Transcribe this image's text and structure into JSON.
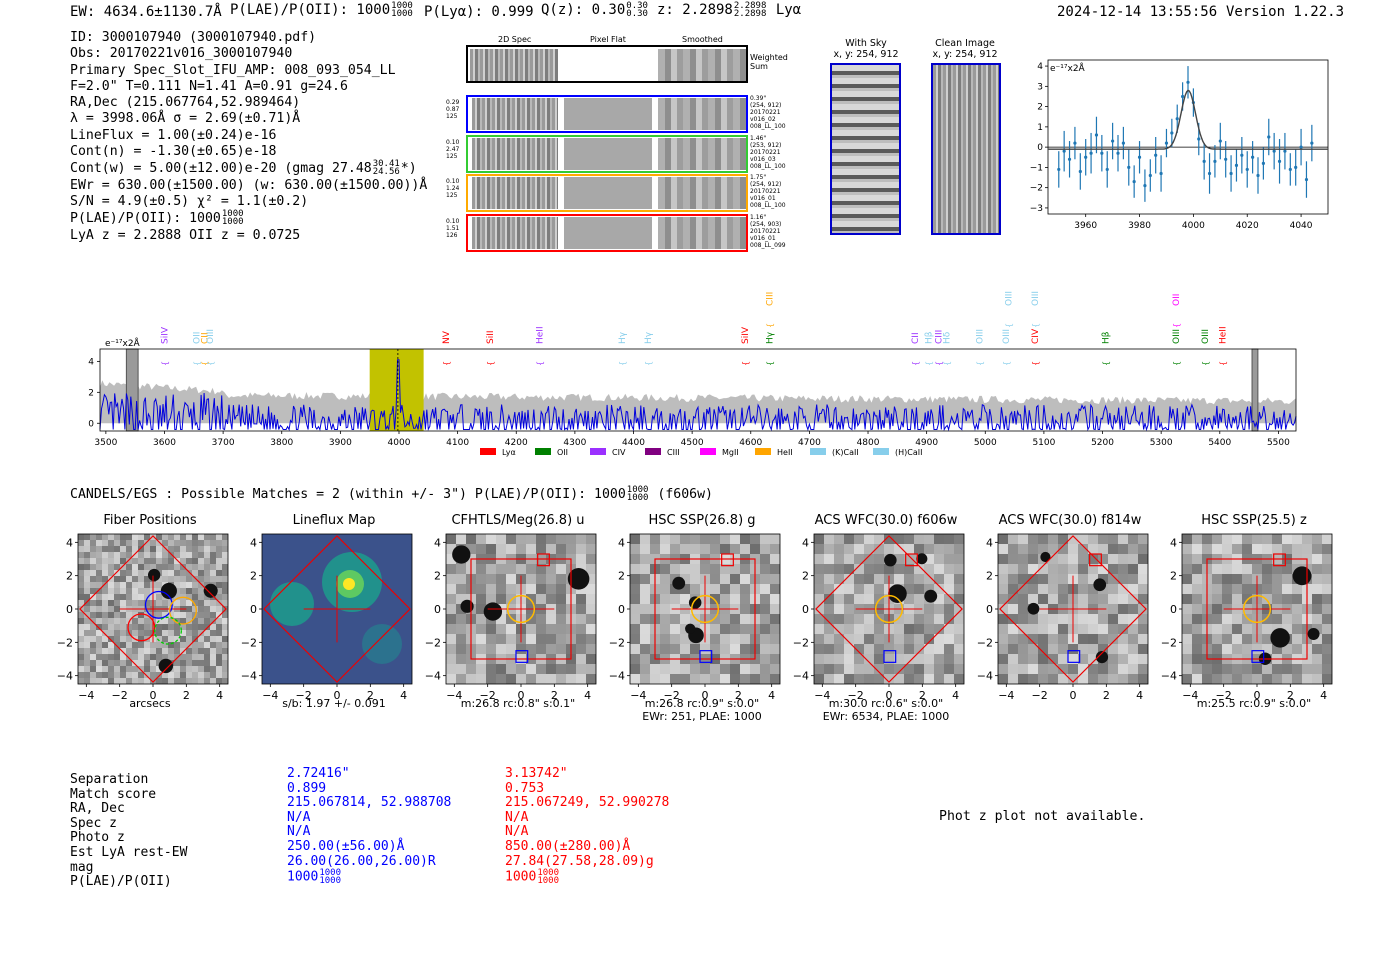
{
  "header": {
    "ew": "EW: 4634.6±1130.7Å",
    "plae_label": "P(LAE)/P(OII): 1000",
    "plae_hi": "1000",
    "plae_lo": "1000",
    "plya": "P(Lyα): 0.999",
    "qz_label": "Q(z): 0.30",
    "qz_hi": "0.30",
    "qz_lo": "0.30",
    "z_label": "z: 2.2898",
    "z_hi": "2.2898",
    "z_lo": "2.2898",
    "z_line": "Lyα",
    "timestamp": "2024-12-14 13:55:56",
    "version": "Version 1.22.3"
  },
  "info": {
    "id": "ID: 3000107940 (3000107940.pdf)",
    "obs": "Obs: 20170221v016_3000107940",
    "primary": "Primary Spec_Slot_IFU_AMP: 008_093_054_LL",
    "fwhm": "F=2.0\"  T=0.111  N=1.41  A=0.91  g=24.6",
    "radec": "RA,Dec (215.067764,52.989464)",
    "lambda": "λ = 3998.06Å  σ = 2.69(±0.71)Å",
    "lineflux": "LineFlux = 1.00(±0.24)e-16",
    "contn": "Cont(n) = -1.30(±0.65)e-18",
    "contw_pre": "Cont(w) = 5.00(±12.00)e-20 (gmag 27.48",
    "contw_hi": "30.41",
    "contw_lo": "24.56",
    "contw_post": "*)",
    "ewr": "EWr = 630.00(±1500.00) (w: 630.00(±1500.00))Å",
    "sn": "S/N = 4.9(±0.5)  χ² = 1.1(±0.2)",
    "plae_pre": "P(LAE)/P(OII): 1000",
    "plae_hi": "1000",
    "plae_lo": "1000",
    "lya_z": "LyA z = 2.2888  OII z = 0.0725"
  },
  "spec2d": {
    "col_headers": [
      "2D Spec",
      "Pixel Flat",
      "Smoothed"
    ],
    "weighted_sum": "Weighted Sum",
    "rows": [
      {
        "stats": [
          "0.29",
          "0.87",
          "125"
        ],
        "right": [
          "0.39\"",
          "(254, 912)",
          "20170221",
          "v016_02",
          "008_LL_100"
        ],
        "color": "#0000ff"
      },
      {
        "stats": [
          "0.10",
          "2.47",
          "125"
        ],
        "right": [
          "1.46\"",
          "(253, 912)",
          "20170221",
          "v016_03",
          "008_LL_100"
        ],
        "color": "#33cc33"
      },
      {
        "stats": [
          "0.10",
          "1.24",
          "125"
        ],
        "right": [
          "1.75\"",
          "(254, 912)",
          "20170221",
          "v016_01",
          "008_LL_100"
        ],
        "color": "#ffaa00"
      },
      {
        "stats": [
          "0.10",
          "1.51",
          "126"
        ],
        "right": [
          "1.16\"",
          "(254, 903)",
          "20170221",
          "v016_01",
          "008_LL_099"
        ],
        "color": "#ff0000"
      }
    ]
  },
  "fiber_images": {
    "with_sky_title": "With Sky",
    "with_sky_coords": "x, y: 254, 912",
    "clean_title": "Clean Image",
    "clean_coords": "x, y: 254, 912"
  },
  "zoom_plot": {
    "unit": "e⁻¹⁷x2Å",
    "yticks": [
      "4",
      "3",
      "2",
      "1",
      "0",
      "−1",
      "−2",
      "−3"
    ],
    "xticks": [
      "3960",
      "3980",
      "4000",
      "4020",
      "4040"
    ],
    "xlim": [
      3946,
      4050
    ],
    "ylim": [
      -3.3,
      4.3
    ],
    "points": [
      {
        "x": 3950,
        "y": -1.1,
        "e": 0.9
      },
      {
        "x": 3952,
        "y": -0.2,
        "e": 1.0
      },
      {
        "x": 3954,
        "y": -0.6,
        "e": 0.9
      },
      {
        "x": 3956,
        "y": 0.2,
        "e": 0.8
      },
      {
        "x": 3958,
        "y": -1.2,
        "e": 0.9
      },
      {
        "x": 3960,
        "y": -0.5,
        "e": 0.9
      },
      {
        "x": 3962,
        "y": -0.3,
        "e": 1.0
      },
      {
        "x": 3964,
        "y": 0.6,
        "e": 0.9
      },
      {
        "x": 3966,
        "y": -0.3,
        "e": 0.9
      },
      {
        "x": 3968,
        "y": -1.1,
        "e": 0.9
      },
      {
        "x": 3970,
        "y": 0.3,
        "e": 0.9
      },
      {
        "x": 3972,
        "y": -0.3,
        "e": 0.9
      },
      {
        "x": 3974,
        "y": 0.2,
        "e": 0.8
      },
      {
        "x": 3976,
        "y": -1.0,
        "e": 0.9
      },
      {
        "x": 3978,
        "y": -1.7,
        "e": 0.8
      },
      {
        "x": 3980,
        "y": -0.5,
        "e": 0.8
      },
      {
        "x": 3982,
        "y": -1.9,
        "e": 0.8
      },
      {
        "x": 3984,
        "y": -1.4,
        "e": 0.8
      },
      {
        "x": 3986,
        "y": -0.4,
        "e": 0.9
      },
      {
        "x": 3988,
        "y": -1.3,
        "e": 0.9
      },
      {
        "x": 3990,
        "y": 0.2,
        "e": 0.7
      },
      {
        "x": 3992,
        "y": 0.7,
        "e": 0.7
      },
      {
        "x": 3994,
        "y": 1.4,
        "e": 0.7
      },
      {
        "x": 3996,
        "y": 2.5,
        "e": 0.7
      },
      {
        "x": 3998,
        "y": 3.2,
        "e": 0.8
      },
      {
        "x": 4000,
        "y": 2.2,
        "e": 0.7
      },
      {
        "x": 4002,
        "y": 0.4,
        "e": 0.8
      },
      {
        "x": 4004,
        "y": -0.7,
        "e": 0.9
      },
      {
        "x": 4006,
        "y": -1.3,
        "e": 1.0
      },
      {
        "x": 4008,
        "y": -0.7,
        "e": 0.8
      },
      {
        "x": 4010,
        "y": 0.3,
        "e": 0.9
      },
      {
        "x": 4012,
        "y": -0.6,
        "e": 0.9
      },
      {
        "x": 4014,
        "y": -1.3,
        "e": 0.9
      },
      {
        "x": 4016,
        "y": -0.9,
        "e": 0.8
      },
      {
        "x": 4018,
        "y": -0.4,
        "e": 0.9
      },
      {
        "x": 4020,
        "y": -1.1,
        "e": 0.9
      },
      {
        "x": 4022,
        "y": -0.5,
        "e": 0.8
      },
      {
        "x": 4024,
        "y": -1.4,
        "e": 0.9
      },
      {
        "x": 4026,
        "y": -0.8,
        "e": 0.8
      },
      {
        "x": 4028,
        "y": 0.5,
        "e": 0.9
      },
      {
        "x": 4030,
        "y": -0.2,
        "e": 0.9
      },
      {
        "x": 4032,
        "y": -0.7,
        "e": 1.1
      },
      {
        "x": 4034,
        "y": -0.2,
        "e": 0.9
      },
      {
        "x": 4036,
        "y": -1.1,
        "e": 0.8
      },
      {
        "x": 4038,
        "y": -1.0,
        "e": 0.9
      },
      {
        "x": 4040,
        "y": 0.0,
        "e": 0.9
      },
      {
        "x": 4042,
        "y": -1.6,
        "e": 0.9
      },
      {
        "x": 4044,
        "y": 0.2,
        "e": 0.9
      }
    ],
    "fit": {
      "center": 3998.1,
      "sigma": 2.7,
      "amp": 2.9,
      "base": -0.1
    }
  },
  "full_spectrum": {
    "unit": "e⁻¹⁷x2Å",
    "yticks": [
      "4",
      "2",
      "0"
    ],
    "xticks": [
      "3500",
      "3600",
      "3700",
      "3800",
      "3900",
      "4000",
      "4100",
      "4200",
      "4300",
      "4400",
      "4500",
      "4600",
      "4700",
      "4800",
      "4900",
      "5000",
      "5100",
      "5200",
      "5300",
      "5400",
      "5500"
    ],
    "xlim": [
      3490,
      5530
    ],
    "ylim": [
      -0.5,
      4.8
    ],
    "highlight": [
      3950,
      4042
    ],
    "line_center": 3998.1,
    "legend": [
      {
        "name": "Lyα",
        "color": "#ff0000"
      },
      {
        "name": "OII",
        "color": "#008000"
      },
      {
        "name": "CIV",
        "color": "#9b30ff"
      },
      {
        "name": "CIII",
        "color": "#800080"
      },
      {
        "name": "MgII",
        "color": "#ff00ff"
      },
      {
        "name": "HeII",
        "color": "#ffa500"
      },
      {
        "name": "(K)CaII",
        "color": "#87ceeb"
      },
      {
        "name": "(H)CaII",
        "color": "#87ceeb"
      }
    ],
    "line_labels": [
      {
        "text": "SiIV",
        "wave": 3600,
        "level": 1,
        "color": "#9b30ff"
      },
      {
        "text": "OII",
        "wave": 3655,
        "level": 1,
        "color": "#87ceeb"
      },
      {
        "text": "CII",
        "wave": 3668,
        "level": 1,
        "color": "#ffa500"
      },
      {
        "text": "OIII",
        "wave": 3678,
        "level": 1,
        "color": "#87ceeb"
      },
      {
        "text": "NV",
        "wave": 4080,
        "level": 1,
        "color": "#ff0000"
      },
      {
        "text": "SiII",
        "wave": 4155,
        "level": 1,
        "color": "#ff0000"
      },
      {
        "text": "HeII",
        "wave": 4240,
        "level": 1,
        "color": "#9b30ff"
      },
      {
        "text": "Hγ",
        "wave": 4380,
        "level": 1,
        "color": "#87ceeb"
      },
      {
        "text": "Hγ",
        "wave": 4425,
        "level": 1,
        "color": "#87ceeb"
      },
      {
        "text": "SiIV",
        "wave": 4590,
        "level": 1,
        "color": "#ff0000"
      },
      {
        "text": "Hγ",
        "wave": 4632,
        "level": 1,
        "color": "#008000"
      },
      {
        "text": "CIII",
        "wave": 4632,
        "level": 0,
        "color": "#ffa500"
      },
      {
        "text": "CII",
        "wave": 4880,
        "level": 1,
        "color": "#9b30ff"
      },
      {
        "text": "Hβ",
        "wave": 4903,
        "level": 1,
        "color": "#87ceeb"
      },
      {
        "text": "CIII",
        "wave": 4920,
        "level": 1,
        "color": "#9b30ff"
      },
      {
        "text": "Hδ",
        "wave": 4934,
        "level": 1,
        "color": "#87ceeb"
      },
      {
        "text": "OIII",
        "wave": 4990,
        "level": 1,
        "color": "#87ceeb"
      },
      {
        "text": "OIII",
        "wave": 5035,
        "level": 1,
        "color": "#87ceeb"
      },
      {
        "text": "OIII",
        "wave": 5040,
        "level": 0,
        "color": "#87ceeb"
      },
      {
        "text": "CIV",
        "wave": 5085,
        "level": 1,
        "color": "#ff0000"
      },
      {
        "text": "OIII",
        "wave": 5085,
        "level": 0,
        "color": "#87ceeb"
      },
      {
        "text": "Hβ",
        "wave": 5205,
        "level": 1,
        "color": "#008000"
      },
      {
        "text": "OIII",
        "wave": 5325,
        "level": 1,
        "color": "#008000"
      },
      {
        "text": "OII",
        "wave": 5325,
        "level": 0,
        "color": "#ff00ff"
      },
      {
        "text": "OIII",
        "wave": 5375,
        "level": 1,
        "color": "#008000"
      },
      {
        "text": "HeII",
        "wave": 5405,
        "level": 1,
        "color": "#ff0000"
      }
    ]
  },
  "catalog": {
    "title_pre": "CANDELS/EGS : Possible Matches = 2 (within +/- 3\")  P(LAE)/P(OII): 1000",
    "title_hi": "1000",
    "title_lo": "1000",
    "title_post": "(f606w)",
    "cutouts": [
      {
        "title": "Fiber Positions",
        "caption1": "arcsecs",
        "caption2": ""
      },
      {
        "title": "Lineflux Map",
        "caption1": "s/b: 1.97 +/- 0.091",
        "caption2": ""
      },
      {
        "title": "CFHTLS/Meg(26.8) u",
        "caption1": "m:26.8 rc:0.8\"  s:0.1\"",
        "caption2": ""
      },
      {
        "title": "HSC SSP(26.8) g",
        "caption1": "m:26.8 rc:0.9\"  s:0.0\"",
        "caption2": "EWr: 251, PLAE: 1000"
      },
      {
        "title": "ACS WFC(30.0) f606w",
        "caption1": "m:30.0 rc:0.6\"  s:0.0\"",
        "caption2": "EWr: 6534, PLAE: 1000"
      },
      {
        "title": "ACS WFC(30.0) f814w",
        "caption1": "",
        "caption2": ""
      },
      {
        "title": "HSC SSP(25.5) z",
        "caption1": "m:25.5 rc:0.9\"  s:0.0\"",
        "caption2": ""
      }
    ],
    "axis_ticks_x": [
      "−4",
      "−2",
      "0",
      "2",
      "4"
    ],
    "axis_ticks_y": [
      "4",
      "2",
      "0",
      "−2",
      "−4"
    ]
  },
  "match_table": {
    "labels": [
      "Separation",
      "Match score",
      "RA, Dec",
      "Spec z",
      "Photo z",
      "Est LyA rest-EW",
      "mag",
      "P(LAE)/P(OII)"
    ],
    "blue": [
      "2.72416\"",
      "0.899",
      "215.067814, 52.988708",
      "N/A",
      "N/A",
      "250.00(±56.00)Å",
      "26.00(26.00,26.00)R",
      "1000"
    ],
    "red": [
      "3.13742\"",
      "0.753",
      "215.067249, 52.990278",
      "N/A",
      "N/A",
      "850.00(±280.00)Å",
      "27.84(27.58,28.09)g",
      "1000"
    ],
    "blue_plae_hi": "1000",
    "blue_plae_lo": "1000",
    "red_plae_hi": "1000",
    "red_plae_lo": "1000",
    "photz_note": "Phot z plot not available."
  }
}
